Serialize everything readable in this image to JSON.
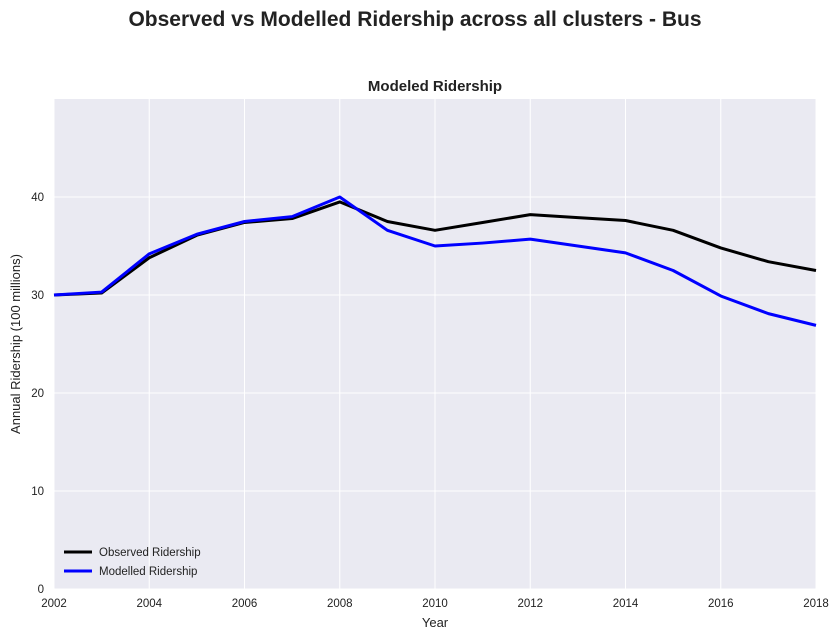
{
  "figure_title": "Observed vs Modelled Ridership across all clusters - Bus",
  "chart_data": {
    "type": "line",
    "title": "Modeled Ridership",
    "xlabel": "Year",
    "ylabel": "Annual Ridership (100 millions)",
    "xlim": [
      2002,
      2018
    ],
    "ylim": [
      0,
      50
    ],
    "xticks": [
      2002,
      2004,
      2006,
      2008,
      2010,
      2012,
      2014,
      2016,
      2018
    ],
    "yticks": [
      0,
      10,
      20,
      30,
      40
    ],
    "grid": true,
    "legend_position": "lower-left",
    "x": [
      2002,
      2003,
      2004,
      2005,
      2006,
      2007,
      2008,
      2009,
      2010,
      2011,
      2012,
      2013,
      2014,
      2015,
      2016,
      2017,
      2018
    ],
    "series": [
      {
        "name": "Observed Ridership",
        "color": "#000000",
        "values": [
          30.0,
          30.2,
          33.8,
          36.1,
          37.4,
          37.8,
          39.5,
          37.5,
          36.6,
          37.4,
          38.2,
          37.9,
          37.6,
          36.6,
          34.8,
          33.4,
          32.5
        ]
      },
      {
        "name": "Modelled Ridership",
        "color": "#0000ff",
        "values": [
          30.0,
          30.3,
          34.2,
          36.2,
          37.5,
          38.0,
          40.0,
          36.6,
          35.0,
          35.3,
          35.7,
          35.0,
          34.3,
          32.5,
          29.9,
          28.1,
          26.9
        ]
      }
    ]
  },
  "colors": {
    "plot_background": "#eaeaf2",
    "grid": "#ffffff"
  }
}
